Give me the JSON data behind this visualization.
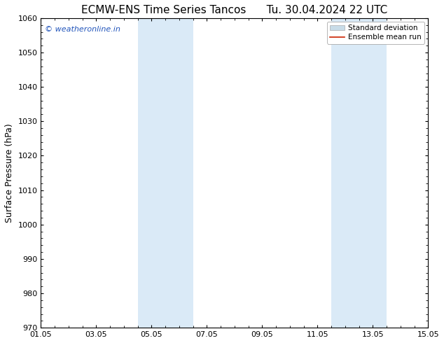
{
  "title_left": "ECMW-ENS Time Series Tancos",
  "title_right": "Tu. 30.04.2024 22 UTC",
  "ylabel": "Surface Pressure (hPa)",
  "ylim": [
    970,
    1060
  ],
  "yticks": [
    970,
    980,
    990,
    1000,
    1010,
    1020,
    1030,
    1040,
    1050,
    1060
  ],
  "xlim": [
    0,
    14
  ],
  "xtick_labels": [
    "01.05",
    "03.05",
    "05.05",
    "07.05",
    "09.05",
    "11.05",
    "13.05",
    "15.05"
  ],
  "xtick_positions": [
    0,
    2,
    4,
    6,
    8,
    10,
    12,
    14
  ],
  "shaded_regions": [
    {
      "x_start": 3.5,
      "x_end": 5.5
    },
    {
      "x_start": 10.5,
      "x_end": 12.5
    }
  ],
  "shaded_color": "#daeaf7",
  "background_color": "#ffffff",
  "watermark_text": "© weatheronline.in",
  "watermark_color": "#2255bb",
  "legend_std_label": "Standard deviation",
  "legend_mean_label": "Ensemble mean run",
  "legend_std_color": "#c8dce8",
  "legend_mean_color": "#cc2200",
  "title_fontsize": 11,
  "ylabel_fontsize": 9,
  "tick_fontsize": 8,
  "watermark_fontsize": 8,
  "legend_fontsize": 7.5
}
